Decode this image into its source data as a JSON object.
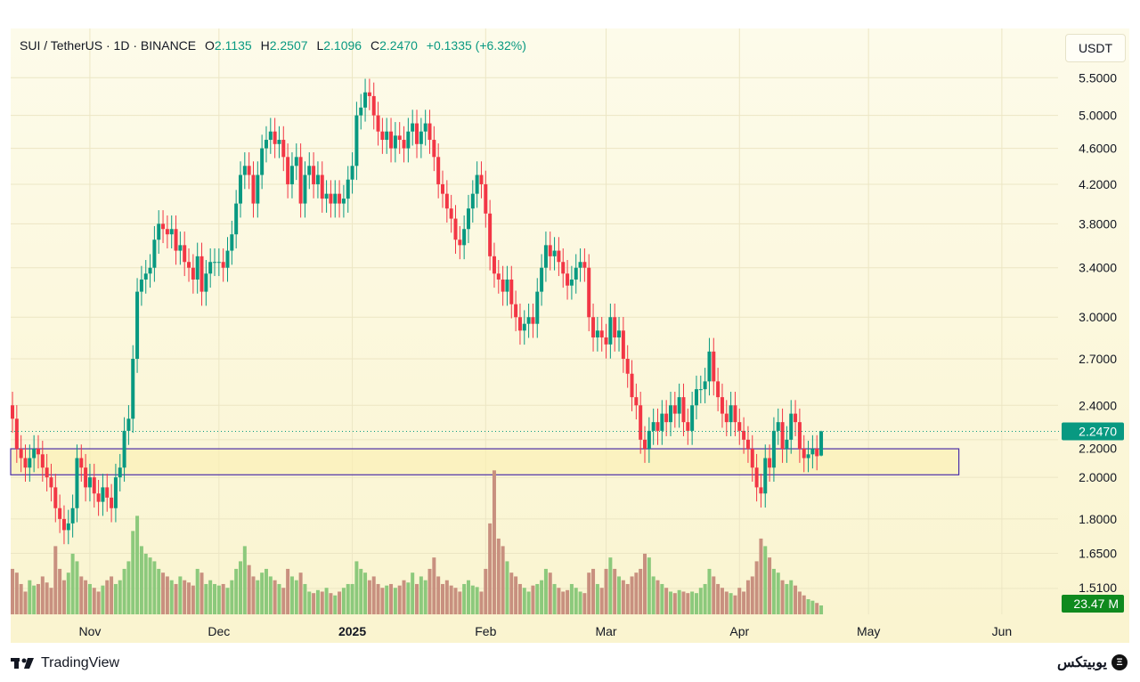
{
  "header": {
    "symbol": "SUI / TetherUS · 1D · BINANCE",
    "open_label": "O",
    "open": "2.1135",
    "high_label": "H",
    "high": "2.2507",
    "low_label": "L",
    "low": "2.1096",
    "close_label": "C",
    "close": "2.2470",
    "change": "+0.1335 (+6.32%)"
  },
  "currency_button": "USDT",
  "footer": {
    "logo_text": "TradingView",
    "brand": "یوبیتکس",
    "brand_icon": "coin-icon"
  },
  "colors": {
    "up": "#089981",
    "down": "#f23645",
    "vol_up": "#8cc97c",
    "vol_down": "#c8907f",
    "zone": "#4b2fa8",
    "background": "#faf5d2"
  },
  "chart_data": {
    "type": "candlestick",
    "title": "SUI / TetherUS · 1D · BINANCE",
    "scale": "log",
    "ylim": [
      1.414,
      6.23
    ],
    "start_date": "Oct 14",
    "first_open": 2.4,
    "last_candle": {
      "o": 2.1135,
      "h": 2.2507,
      "l": 2.1096,
      "c": 2.247
    },
    "closes": [
      2.32,
      2.15,
      2.1,
      2.05,
      2.1,
      2.15,
      2.12,
      2.05,
      2.0,
      1.95,
      1.85,
      1.8,
      1.75,
      1.78,
      1.85,
      2.1,
      2.05,
      1.95,
      2.0,
      1.92,
      1.88,
      1.95,
      1.9,
      1.85,
      2.0,
      2.05,
      2.25,
      2.32,
      2.7,
      3.2,
      3.3,
      3.35,
      3.4,
      3.65,
      3.8,
      3.75,
      3.7,
      3.75,
      3.55,
      3.6,
      3.45,
      3.4,
      3.3,
      3.5,
      3.2,
      3.35,
      3.45,
      3.45,
      3.45,
      3.4,
      3.55,
      3.7,
      4.0,
      4.3,
      4.4,
      4.3,
      4.0,
      4.3,
      4.6,
      4.7,
      4.8,
      4.65,
      4.7,
      4.5,
      4.2,
      4.4,
      4.5,
      4.0,
      4.3,
      4.4,
      4.2,
      4.3,
      4.05,
      4.1,
      4.0,
      4.1,
      4.0,
      4.05,
      4.25,
      4.4,
      5.0,
      5.1,
      5.3,
      5.25,
      5.0,
      4.8,
      4.7,
      4.8,
      4.6,
      4.75,
      4.7,
      4.6,
      4.8,
      4.9,
      4.65,
      4.8,
      4.9,
      4.7,
      4.5,
      4.2,
      4.1,
      3.95,
      3.85,
      3.65,
      3.6,
      3.75,
      3.95,
      4.1,
      4.3,
      4.2,
      3.9,
      3.5,
      3.35,
      3.3,
      3.2,
      3.3,
      3.1,
      3.0,
      2.9,
      2.95,
      3.0,
      2.95,
      3.2,
      3.4,
      3.6,
      3.5,
      3.55,
      3.45,
      3.35,
      3.25,
      3.3,
      3.4,
      3.45,
      3.4,
      3.0,
      2.85,
      2.9,
      2.85,
      2.8,
      3.0,
      2.85,
      2.9,
      2.7,
      2.6,
      2.45,
      2.4,
      2.2,
      2.15,
      2.25,
      2.3,
      2.25,
      2.35,
      2.3,
      2.4,
      2.35,
      2.45,
      2.3,
      2.25,
      2.4,
      2.5,
      2.5,
      2.55,
      2.75,
      2.55,
      2.45,
      2.35,
      2.3,
      2.4,
      2.3,
      2.25,
      2.2,
      2.15,
      2.05,
      1.95,
      1.92,
      2.1,
      2.05,
      2.25,
      2.3,
      2.15,
      2.2,
      2.35,
      2.3,
      2.15,
      2.1,
      2.12,
      2.15,
      2.11,
      2.247
    ],
    "volumes_m": [
      120,
      110,
      80,
      60,
      90,
      76,
      80,
      100,
      84,
      70,
      180,
      120,
      90,
      110,
      160,
      140,
      100,
      90,
      80,
      70,
      60,
      76,
      90,
      100,
      80,
      90,
      120,
      140,
      220,
      260,
      180,
      160,
      150,
      140,
      120,
      110,
      100,
      90,
      80,
      100,
      90,
      84,
      76,
      120,
      110,
      80,
      90,
      80,
      76,
      80,
      70,
      90,
      120,
      140,
      180,
      130,
      100,
      90,
      110,
      120,
      100,
      90,
      80,
      70,
      120,
      100,
      90,
      110,
      80,
      60,
      56,
      64,
      60,
      70,
      56,
      50,
      60,
      70,
      80,
      80,
      140,
      120,
      110,
      90,
      100,
      80,
      70,
      76,
      80,
      70,
      76,
      90,
      84,
      110,
      80,
      100,
      90,
      120,
      150,
      100,
      80,
      90,
      76,
      70,
      60,
      80,
      90,
      76,
      72,
      60,
      120,
      240,
      380,
      200,
      180,
      140,
      110,
      100,
      80,
      70,
      60,
      76,
      80,
      90,
      120,
      110,
      80,
      70,
      60,
      64,
      80,
      70,
      60,
      56,
      110,
      120,
      80,
      70,
      120,
      150,
      120,
      100,
      90,
      80,
      100,
      110,
      120,
      160,
      150,
      100,
      90,
      80,
      70,
      60,
      56,
      64,
      60,
      56,
      60,
      56,
      70,
      80,
      120,
      100,
      80,
      70,
      60,
      56,
      50,
      70,
      60,
      90,
      100,
      140,
      200,
      180,
      150,
      120,
      110,
      90,
      80,
      90,
      76,
      60,
      50,
      40,
      36,
      30,
      23.47
    ],
    "y_ticks": [
      "5.5000",
      "5.0000",
      "4.6000",
      "4.2000",
      "3.8000",
      "3.4000",
      "3.0000",
      "2.7000",
      "2.4000",
      "2.2000",
      "2.0000",
      "1.8000",
      "1.6500",
      "1.5100"
    ],
    "x_ticks": [
      {
        "label": "Nov",
        "day": 18
      },
      {
        "label": "Dec",
        "day": 48
      },
      {
        "label": "2025",
        "day": 79,
        "bold": true
      },
      {
        "label": "Feb",
        "day": 110
      },
      {
        "label": "Mar",
        "day": 138
      },
      {
        "label": "Apr",
        "day": 169
      },
      {
        "label": "May",
        "day": 199
      },
      {
        "label": "Jun",
        "day": 230
      }
    ],
    "last_price_label": "2.2470",
    "last_volume_label": "23.47 M",
    "zone": {
      "low": 2.013,
      "high": 2.15,
      "end_day": 220
    }
  }
}
